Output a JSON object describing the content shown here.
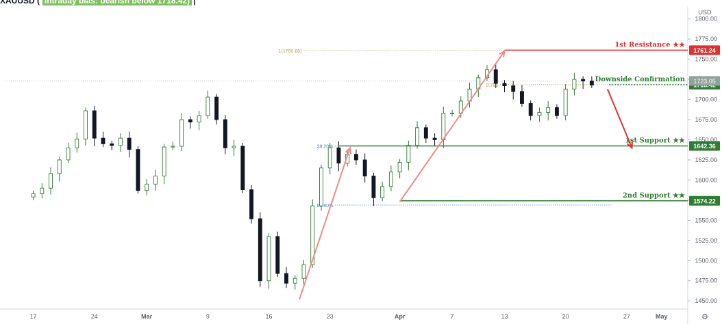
{
  "header": {
    "symbol": "XAUUSD (",
    "subtitle": "Intraday bias: bearish below 1718.42)",
    "caret": "|"
  },
  "chart_data": {
    "type": "candlestick",
    "currency": "USD",
    "ylim": [
      1440,
      1815
    ],
    "xlim": [
      -3.5,
      75
    ],
    "y_ticks": [
      1450,
      1475,
      1500,
      1525,
      1550,
      1575,
      1600,
      1625,
      1650,
      1675,
      1700,
      1725,
      1750,
      1775,
      1800
    ],
    "x_ticks": [
      {
        "label": "17",
        "x": 0
      },
      {
        "label": "24",
        "x": 7
      },
      {
        "label": "Mar",
        "x": 13
      },
      {
        "label": "9",
        "x": 20
      },
      {
        "label": "16",
        "x": 27
      },
      {
        "label": "23",
        "x": 34
      },
      {
        "label": "Apr",
        "x": 42
      },
      {
        "label": "7",
        "x": 48
      },
      {
        "label": "13",
        "x": 54
      },
      {
        "label": "20",
        "x": 61
      },
      {
        "label": "27",
        "x": 68
      },
      {
        "label": "May",
        "x": 72
      }
    ],
    "extra_x_ticks": [
      "11",
      "18"
    ],
    "series_close": [
      1583,
      1590,
      1608,
      1625,
      1640,
      1651,
      1686,
      1652,
      1645,
      1643,
      1652,
      1638,
      1587,
      1595,
      1605,
      1641,
      1642,
      1675,
      1672,
      1680,
      1703,
      1675,
      1640,
      1642,
      1588,
      1552,
      1475,
      1530,
      1484,
      1472,
      1478,
      1495,
      1568,
      1615,
      1640,
      1621,
      1632,
      1625,
      1605,
      1578,
      1592,
      1610,
      1622,
      1643,
      1665,
      1652,
      1650,
      1683,
      1683,
      1698,
      1713,
      1727,
      1737,
      1720,
      1717,
      1710,
      1695,
      1680,
      1684,
      1690,
      1680,
      1713,
      1725,
      1723,
      1718
    ],
    "last_price": "1723.05",
    "levels": [
      {
        "name": "1st Resistance ★★",
        "value": 1761.24,
        "label": "1761.24",
        "kind": "resistance",
        "color": "#e03030"
      },
      {
        "name": "Downside Confirmation",
        "value": 1718.42,
        "label": "1718.42",
        "kind": "confirmation",
        "color": "#2e7d32"
      },
      {
        "name": "1st Support ★★",
        "value": 1642.36,
        "label": "1642.36",
        "kind": "support",
        "color": "#2e7d32"
      },
      {
        "name": "2nd Support ★★",
        "value": 1574.22,
        "label": "1574.22",
        "kind": "support",
        "color": "#2e7d32"
      }
    ],
    "fibs": [
      {
        "label": "38.20%",
        "value": 1642.36,
        "color": "#4a7fd4"
      },
      {
        "label": "61.80%",
        "value": 1569,
        "color": "#4a7fd4"
      },
      {
        "label": "1(1760.66)",
        "value": 1760.66,
        "color": "#b3a05a"
      },
      {
        "label": "0.786",
        "value": 1718.42,
        "color": "#b3a05a"
      }
    ],
    "arrows": [
      {
        "from": [
          30.5,
          1452
        ],
        "to": [
          36.3,
          1640
        ],
        "color": "#f08a8a"
      },
      {
        "from": [
          42,
          1573
        ],
        "to": [
          54,
          1760
        ],
        "color": "#f08a8a"
      },
      {
        "from": [
          65.8,
          1713
        ],
        "to": [
          68.6,
          1640
        ],
        "color": "#e03030"
      }
    ]
  }
}
